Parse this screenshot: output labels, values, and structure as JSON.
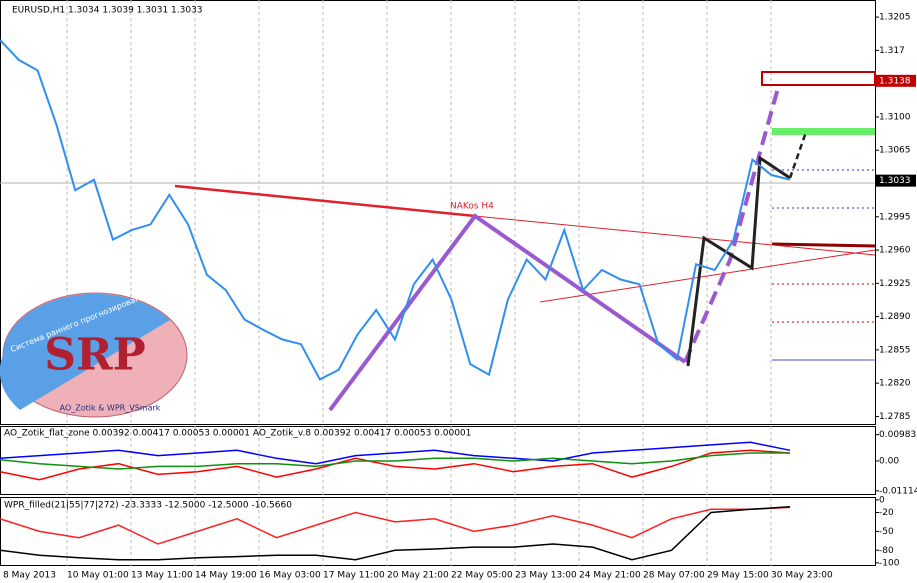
{
  "chart_data": [
    {
      "type": "line",
      "title": "EURUSD,H1  1.3034 1.3039 1.3031 1.3033",
      "annotations": [
        "NAKos H4"
      ],
      "price_labels": [
        1.3138,
        1.3033
      ],
      "ylim": [
        1.2776,
        1.3223
      ],
      "yticks": [
        1.3205,
        1.317,
        {
          "value": 1.31,
          "label": "1.3100"
        },
        1.3065,
        1.2995,
        {
          "value": 1.296,
          "label": "1.2960"
        },
        1.2925,
        {
          "value": 1.289,
          "label": "1.2890"
        },
        1.2855,
        {
          "value": 1.282,
          "label": "1.2820"
        },
        1.2785
      ],
      "series": [
        {
          "color": "#2f8ff0",
          "values": [
            1.3181,
            1.316,
            1.3149,
            1.3092,
            1.3023,
            1.3034,
            1.2971,
            1.2981,
            1.2987,
            1.3018,
            1.2987,
            1.2934,
            1.2918,
            1.2887,
            1.2876,
            1.2866,
            1.2861,
            1.2824,
            1.2834,
            1.2871,
            1.2897,
            1.2866,
            1.2924,
            1.295,
            1.2908,
            1.284,
            1.2829,
            1.2908,
            1.295,
            1.2929,
            1.2981,
            1.2918,
            1.2939,
            1.2929,
            1.2924,
            1.2861,
            1.2845,
            1.2945,
            1.2939,
            1.2971,
            1.3055,
            1.3039,
            1.3034
          ]
        }
      ]
    },
    {
      "type": "line",
      "title": "AO_Zotik_flat_zone 0.00392 0.00417 0.00053 0.00001  AO_Zotik_v.8 0.00392 0.00417 0.00053 0.00001",
      "ylim": [
        -0.0127,
        0.0127
      ],
      "yticks": [
        0.00983,
        {
          "value": 0,
          "label": "0.00"
        },
        -0.01114
      ],
      "series": [
        {
          "color": "#0000ff",
          "values": [
            0.001,
            0.002,
            0.003,
            0.004,
            0.002,
            0.003,
            0.004,
            0.001,
            -0.001,
            0.002,
            0.003,
            0.004,
            0.002,
            0.001,
            0,
            0.003,
            0.004,
            0.005,
            0.006,
            0.007,
            0.004
          ]
        },
        {
          "color": "#ff0000",
          "values": [
            -0.004,
            -0.007,
            -0.003,
            -0.001,
            -0.005,
            -0.004,
            -0.002,
            -0.006,
            -0.003,
            0.001,
            -0.002,
            -0.003,
            -0.001,
            -0.004,
            -0.002,
            -0.001,
            -0.006,
            -0.002,
            0.003,
            0.004,
            0.003
          ]
        },
        {
          "color": "#109010",
          "values": [
            0.0005,
            -0.001,
            -0.002,
            -0.003,
            -0.002,
            -0.002,
            -0.001,
            -0.001,
            -0.002,
            0,
            0,
            0.001,
            0.001,
            0,
            0.001,
            0,
            -0.001,
            0,
            0.002,
            0.003,
            0.003
          ]
        }
      ]
    },
    {
      "type": "line",
      "title": "WPR_filled(21|55|77|272) -23.3333 -12.5000 -12.5000 -10.5660",
      "ylim": [
        -105,
        3
      ],
      "yticks": [
        0,
        -20,
        -50,
        -80,
        -100
      ],
      "series": [
        {
          "color": "#ff2020",
          "values": [
            -30,
            -50,
            -60,
            -40,
            -70,
            -50,
            -30,
            -60,
            -40,
            -20,
            -35,
            -30,
            -50,
            -40,
            -25,
            -40,
            -60,
            -30,
            -15,
            -15,
            -12
          ]
        },
        {
          "color": "#000000",
          "values": [
            -80,
            -88,
            -92,
            -95,
            -95,
            -92,
            -90,
            -88,
            -88,
            -95,
            -80,
            -78,
            -75,
            -75,
            -70,
            -75,
            -95,
            -80,
            -20,
            -15,
            -11
          ]
        }
      ]
    }
  ],
  "time_labels": [
    "8 May 2013",
    "10 May 01:00",
    "13 May 11:00",
    "14 May 19:00",
    "16 May 03:00",
    "17 May 11:00",
    "20 May 21:00",
    "22 May 05:00",
    "23 May 13:00",
    "24 May 21:00",
    "28 May 07:00",
    "29 May 15:00",
    "30 May 23:00"
  ],
  "logo": {
    "title": "SRP",
    "subtitle": "Система раннего прогнозирования",
    "credit": "AO_Zotik & WPR_VSmark"
  }
}
